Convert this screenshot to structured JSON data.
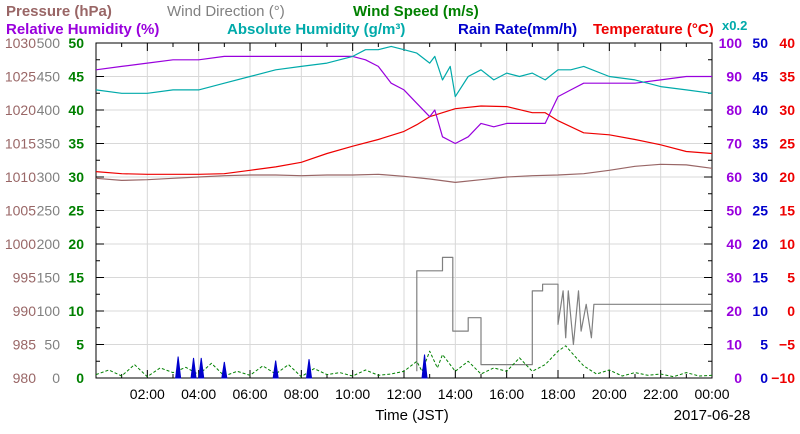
{
  "chart_data": {
    "type": "line",
    "date_label": "2017-06-28",
    "xlabel": "Time (JST)",
    "x_ticks": [
      "02:00",
      "04:00",
      "06:00",
      "08:00",
      "10:00",
      "12:00",
      "14:00",
      "16:00",
      "18:00",
      "20:00",
      "22:00",
      "00:00"
    ],
    "x_range": [
      "00:00",
      "24:00"
    ],
    "legend": [
      {
        "label": "Pressure (hPa)",
        "color": "#996666"
      },
      {
        "label": "Wind Direction (°)",
        "color": "#808080"
      },
      {
        "label": "Wind Speed (m/s)",
        "color": "#008000"
      },
      {
        "label": "Relative Humidity (%)",
        "color": "#9900dd"
      },
      {
        "label": "Absolute Humidity (g/m³)",
        "color": "#00aaaa"
      },
      {
        "label": "x0.2",
        "color": "#00aaaa"
      },
      {
        "label": "Rain Rate(mm/h)",
        "color": "#0000cc"
      },
      {
        "label": "Temperature (°C)",
        "color": "#ee0000"
      }
    ],
    "axes": [
      {
        "name": "pressure",
        "color": "#996666",
        "side": "left",
        "ticks": [
          "1030",
          "1025",
          "1020",
          "1015",
          "1010",
          "1005",
          "1000",
          "995",
          "990",
          "985",
          "980"
        ],
        "range": [
          980,
          1030
        ]
      },
      {
        "name": "wind_direction",
        "color": "#808080",
        "side": "left",
        "ticks": [
          "500",
          "450",
          "400",
          "350",
          "300",
          "250",
          "200",
          "150",
          "100",
          "50",
          "0"
        ],
        "range": [
          0,
          500
        ]
      },
      {
        "name": "wind_speed",
        "color": "#008000",
        "side": "left",
        "ticks": [
          "50",
          "45",
          "40",
          "35",
          "30",
          "25",
          "20",
          "15",
          "10",
          "5",
          "0"
        ],
        "range": [
          0,
          50
        ]
      },
      {
        "name": "relative_humidity",
        "color": "#9900dd",
        "side": "right",
        "ticks": [
          "100",
          "90",
          "80",
          "70",
          "60",
          "50",
          "40",
          "30",
          "20",
          "10",
          "0"
        ],
        "range": [
          0,
          100
        ]
      },
      {
        "name": "rain_rate",
        "color": "#0000cc",
        "side": "right",
        "ticks": [
          "50",
          "45",
          "40",
          "35",
          "30",
          "25",
          "20",
          "15",
          "10",
          "5",
          "0"
        ],
        "range": [
          0,
          50
        ]
      },
      {
        "name": "temperature",
        "color": "#ee0000",
        "side": "right",
        "ticks": [
          "40",
          "35",
          "30",
          "25",
          "20",
          "15",
          "10",
          "5",
          "0",
          "−5",
          "−10"
        ],
        "range": [
          -10,
          40
        ]
      }
    ],
    "grid": true,
    "series": [
      {
        "name": "Temperature",
        "color": "#ee0000",
        "axis": "temperature",
        "x": [
          0,
          1,
          2,
          3,
          4,
          5,
          6,
          7,
          8,
          9,
          10,
          11,
          12,
          12.5,
          13,
          13.5,
          14,
          15,
          16,
          17,
          17.5,
          18,
          19,
          20,
          21,
          22,
          23,
          24
        ],
        "y": [
          20.8,
          20.5,
          20.4,
          20.4,
          20.4,
          20.5,
          21.0,
          21.5,
          22.2,
          23.5,
          24.6,
          25.6,
          26.8,
          27.8,
          29.0,
          29.6,
          30.2,
          30.6,
          30.5,
          29.6,
          29.6,
          28.4,
          26.6,
          26.3,
          25.6,
          24.8,
          23.8,
          23.5
        ]
      },
      {
        "name": "Pressure",
        "color": "#996666",
        "axis": "pressure",
        "x": [
          0,
          1,
          2,
          3,
          4,
          5,
          6,
          7,
          8,
          9,
          10,
          11,
          12,
          13,
          14,
          15,
          16,
          17,
          18,
          19,
          20,
          21,
          22,
          23,
          24
        ],
        "y": [
          1009.8,
          1009.5,
          1009.6,
          1009.8,
          1010.0,
          1010.2,
          1010.3,
          1010.3,
          1010.2,
          1010.3,
          1010.3,
          1010.4,
          1010.1,
          1009.7,
          1009.2,
          1009.6,
          1010.0,
          1010.2,
          1010.3,
          1010.5,
          1011.0,
          1011.6,
          1011.9,
          1011.8,
          1011.3
        ]
      },
      {
        "name": "Relative Humidity",
        "color": "#9900dd",
        "axis": "relative_humidity",
        "x": [
          0,
          1,
          2,
          3,
          4,
          5,
          6,
          7,
          8,
          9,
          9.5,
          10,
          10.5,
          11,
          11.5,
          12,
          12.5,
          13,
          13.2,
          13.5,
          14,
          14.5,
          15,
          15.5,
          16,
          16.5,
          17,
          17.5,
          18,
          18.5,
          19,
          19.5,
          20,
          21,
          22,
          23,
          24
        ],
        "y": [
          92,
          93,
          94,
          95,
          95,
          96,
          96,
          96,
          96,
          96,
          96,
          96,
          95,
          93,
          88,
          86,
          82,
          78,
          80,
          72,
          70,
          72,
          76,
          75,
          76,
          76,
          76,
          76,
          84,
          86,
          88,
          88,
          88,
          88,
          89,
          90,
          90
        ]
      },
      {
        "name": "Absolute Humidity",
        "color": "#00aaaa",
        "axis": "relative_humidity",
        "x": [
          0,
          1,
          2,
          3,
          4,
          5,
          6,
          7,
          8,
          9,
          10,
          10.5,
          11,
          11.5,
          12,
          12.5,
          13,
          13.2,
          13.5,
          13.8,
          14,
          14.5,
          15,
          15.5,
          16,
          16.5,
          17,
          17.5,
          18,
          18.5,
          19,
          20,
          21,
          22,
          23,
          24
        ],
        "y": [
          86,
          85,
          85,
          86,
          86,
          88,
          90,
          92,
          93,
          94,
          96,
          98,
          98,
          99,
          98,
          97,
          94,
          96,
          89,
          93,
          84,
          90,
          92,
          89,
          91,
          90,
          91,
          89,
          92,
          92,
          93,
          90,
          89,
          87,
          86,
          85
        ]
      },
      {
        "name": "Wind Direction",
        "color": "#808080",
        "axis": "wind_direction",
        "x": [
          0,
          12.4,
          12.5,
          12.5,
          13.5,
          13.5,
          13.9,
          13.9,
          14.5,
          14.5,
          15.0,
          15.0,
          15.5,
          15.5,
          17.0,
          17.0,
          17.4,
          17.4,
          18.0,
          18.0,
          18.2,
          18.3,
          18.4,
          18.6,
          18.8,
          18.9,
          19.1,
          19.3,
          19.4,
          19.6,
          20,
          24
        ],
        "y": [
          null,
          null,
          10,
          160,
          160,
          180,
          180,
          70,
          70,
          90,
          90,
          20,
          20,
          20,
          20,
          130,
          130,
          140,
          140,
          80,
          130,
          60,
          130,
          50,
          130,
          70,
          110,
          60,
          110,
          110,
          110,
          110
        ]
      },
      {
        "name": "Wind Speed",
        "color": "#008000",
        "axis": "wind_speed",
        "x": [
          0,
          0.5,
          1,
          1.5,
          2,
          2.5,
          3,
          3.5,
          4,
          4.5,
          5,
          5.5,
          6,
          6.5,
          7,
          7.5,
          8,
          8.5,
          9,
          9.5,
          10,
          10.5,
          11,
          11.5,
          12,
          12.5,
          12.7,
          13,
          13.3,
          13.5,
          14,
          14.5,
          15,
          15.5,
          16,
          16.5,
          17,
          17.5,
          18,
          18.3,
          18.6,
          19,
          19.5,
          20,
          20.5,
          21,
          21.5,
          22,
          22.5,
          23,
          23.5,
          24
        ],
        "y": [
          0.5,
          1.2,
          0.3,
          2,
          0.2,
          1.5,
          0.8,
          1.6,
          0.5,
          2.2,
          0.3,
          1,
          0.4,
          1.8,
          0.6,
          2,
          0.2,
          1.4,
          0.5,
          0.8,
          0.3,
          1.2,
          0.4,
          0.6,
          1,
          2.5,
          1,
          4,
          1.5,
          3.5,
          1,
          2.5,
          0.6,
          1.5,
          1,
          3,
          1,
          2,
          4,
          4.8,
          3.5,
          1.8,
          0.6,
          1.2,
          0.3,
          0.8,
          0.4,
          0.6,
          0.2,
          0.8,
          0.3,
          0.4
        ]
      },
      {
        "name": "Rain Rate",
        "color": "#0000cc",
        "axis": "rain_rate",
        "style": "spikes",
        "x": [
          3.2,
          3.8,
          4.1,
          5.0,
          7.0,
          8.3,
          12.8
        ],
        "y": [
          3.2,
          3.0,
          3.0,
          2.4,
          2.6,
          2.8,
          3.5
        ]
      }
    ]
  }
}
